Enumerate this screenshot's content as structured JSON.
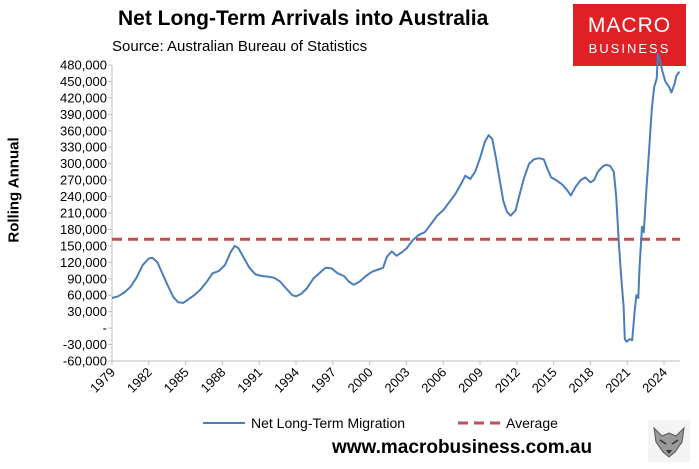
{
  "header": {
    "title": "Net Long-Term Arrivals into Australia",
    "subtitle": "Source: Australian Bureau of Statistics"
  },
  "logo": {
    "line1": "MACRO",
    "line2": "BUSINESS"
  },
  "footer": {
    "url": "www.macrobusiness.com.au"
  },
  "chart_data": {
    "type": "line",
    "title": "Net Long-Term Arrivals into Australia",
    "subtitle": "Source: Australian Bureau of Statistics",
    "xlabel": "",
    "ylabel": "Rolling Annual",
    "xlim": [
      1979,
      2025.3
    ],
    "ylim": [
      -60000,
      480000
    ],
    "xticks": [
      1979,
      1982,
      1985,
      1988,
      1991,
      1994,
      1997,
      2000,
      2003,
      2006,
      2009,
      2012,
      2015,
      2018,
      2021,
      2024
    ],
    "yticks": [
      -60000,
      -30000,
      0,
      30000,
      60000,
      90000,
      120000,
      150000,
      180000,
      210000,
      240000,
      270000,
      300000,
      330000,
      360000,
      390000,
      420000,
      450000,
      480000
    ],
    "ytick_labels": [
      "-60,000",
      "-30,000",
      "-",
      "30,000",
      "60,000",
      "90,000",
      "120,000",
      "150,000",
      "180,000",
      "210,000",
      "240,000",
      "270,000",
      "300,000",
      "330,000",
      "360,000",
      "390,000",
      "420,000",
      "450,000",
      "480,000"
    ],
    "grid": false,
    "legend_position": "bottom",
    "series": [
      {
        "name": "Net Long-Term Migration",
        "color": "#4a7ebb",
        "style": "solid",
        "points": [
          [
            1979.0,
            55000
          ],
          [
            1979.5,
            58000
          ],
          [
            1980.0,
            65000
          ],
          [
            1980.5,
            75000
          ],
          [
            1981.0,
            92000
          ],
          [
            1981.5,
            115000
          ],
          [
            1982.0,
            127000
          ],
          [
            1982.3,
            128000
          ],
          [
            1982.7,
            120000
          ],
          [
            1983.0,
            105000
          ],
          [
            1983.5,
            80000
          ],
          [
            1984.0,
            57000
          ],
          [
            1984.4,
            47000
          ],
          [
            1984.8,
            46000
          ],
          [
            1985.2,
            52000
          ],
          [
            1985.7,
            60000
          ],
          [
            1986.2,
            70000
          ],
          [
            1986.7,
            84000
          ],
          [
            1987.2,
            100000
          ],
          [
            1987.7,
            104000
          ],
          [
            1988.2,
            115000
          ],
          [
            1988.7,
            140000
          ],
          [
            1989.0,
            150000
          ],
          [
            1989.3,
            146000
          ],
          [
            1989.7,
            130000
          ],
          [
            1990.2,
            110000
          ],
          [
            1990.7,
            98000
          ],
          [
            1991.2,
            95000
          ],
          [
            1991.7,
            94000
          ],
          [
            1992.2,
            92000
          ],
          [
            1992.7,
            85000
          ],
          [
            1993.2,
            72000
          ],
          [
            1993.7,
            60000
          ],
          [
            1994.0,
            58000
          ],
          [
            1994.4,
            62000
          ],
          [
            1994.9,
            73000
          ],
          [
            1995.4,
            90000
          ],
          [
            1995.9,
            100000
          ],
          [
            1996.4,
            110000
          ],
          [
            1996.9,
            109000
          ],
          [
            1997.4,
            100000
          ],
          [
            1997.9,
            95000
          ],
          [
            1998.3,
            85000
          ],
          [
            1998.7,
            79000
          ],
          [
            1999.2,
            85000
          ],
          [
            1999.7,
            95000
          ],
          [
            2000.2,
            103000
          ],
          [
            2000.7,
            107000
          ],
          [
            2001.1,
            110000
          ],
          [
            2001.4,
            130000
          ],
          [
            2001.8,
            140000
          ],
          [
            2002.2,
            132000
          ],
          [
            2002.6,
            138000
          ],
          [
            2003.0,
            145000
          ],
          [
            2003.5,
            160000
          ],
          [
            2004.0,
            170000
          ],
          [
            2004.5,
            175000
          ],
          [
            2005.0,
            190000
          ],
          [
            2005.5,
            205000
          ],
          [
            2006.0,
            215000
          ],
          [
            2006.5,
            230000
          ],
          [
            2007.0,
            245000
          ],
          [
            2007.5,
            265000
          ],
          [
            2007.8,
            278000
          ],
          [
            2008.2,
            272000
          ],
          [
            2008.6,
            285000
          ],
          [
            2009.0,
            310000
          ],
          [
            2009.4,
            340000
          ],
          [
            2009.7,
            352000
          ],
          [
            2010.0,
            345000
          ],
          [
            2010.3,
            310000
          ],
          [
            2010.6,
            270000
          ],
          [
            2010.9,
            232000
          ],
          [
            2011.2,
            212000
          ],
          [
            2011.5,
            205000
          ],
          [
            2011.9,
            215000
          ],
          [
            2012.3,
            250000
          ],
          [
            2012.6,
            275000
          ],
          [
            2013.0,
            300000
          ],
          [
            2013.4,
            308000
          ],
          [
            2013.8,
            310000
          ],
          [
            2014.2,
            308000
          ],
          [
            2014.5,
            290000
          ],
          [
            2014.8,
            275000
          ],
          [
            2015.2,
            270000
          ],
          [
            2015.7,
            262000
          ],
          [
            2016.1,
            252000
          ],
          [
            2016.4,
            242000
          ],
          [
            2016.8,
            258000
          ],
          [
            2017.2,
            270000
          ],
          [
            2017.6,
            275000
          ],
          [
            2018.0,
            266000
          ],
          [
            2018.3,
            270000
          ],
          [
            2018.6,
            285000
          ],
          [
            2019.0,
            295000
          ],
          [
            2019.3,
            298000
          ],
          [
            2019.6,
            296000
          ],
          [
            2019.9,
            285000
          ],
          [
            2020.1,
            240000
          ],
          [
            2020.3,
            160000
          ],
          [
            2020.5,
            95000
          ],
          [
            2020.7,
            40000
          ],
          [
            2020.8,
            -20000
          ],
          [
            2020.95,
            -25000
          ],
          [
            2021.2,
            -20000
          ],
          [
            2021.4,
            -22000
          ],
          [
            2021.6,
            30000
          ],
          [
            2021.75,
            60000
          ],
          [
            2021.9,
            55000
          ],
          [
            2022.0,
            110000
          ],
          [
            2022.2,
            185000
          ],
          [
            2022.35,
            175000
          ],
          [
            2022.55,
            250000
          ],
          [
            2022.8,
            330000
          ],
          [
            2023.0,
            400000
          ],
          [
            2023.2,
            440000
          ],
          [
            2023.4,
            455000
          ],
          [
            2023.5,
            500000
          ],
          [
            2023.65,
            490000
          ],
          [
            2023.85,
            470000
          ],
          [
            2024.1,
            450000
          ],
          [
            2024.4,
            440000
          ],
          [
            2024.6,
            430000
          ],
          [
            2024.85,
            445000
          ],
          [
            2025.0,
            460000
          ],
          [
            2025.25,
            468000
          ]
        ]
      },
      {
        "name": "Average",
        "color": "#c0504d",
        "style": "dashed",
        "value": 162000
      }
    ]
  }
}
